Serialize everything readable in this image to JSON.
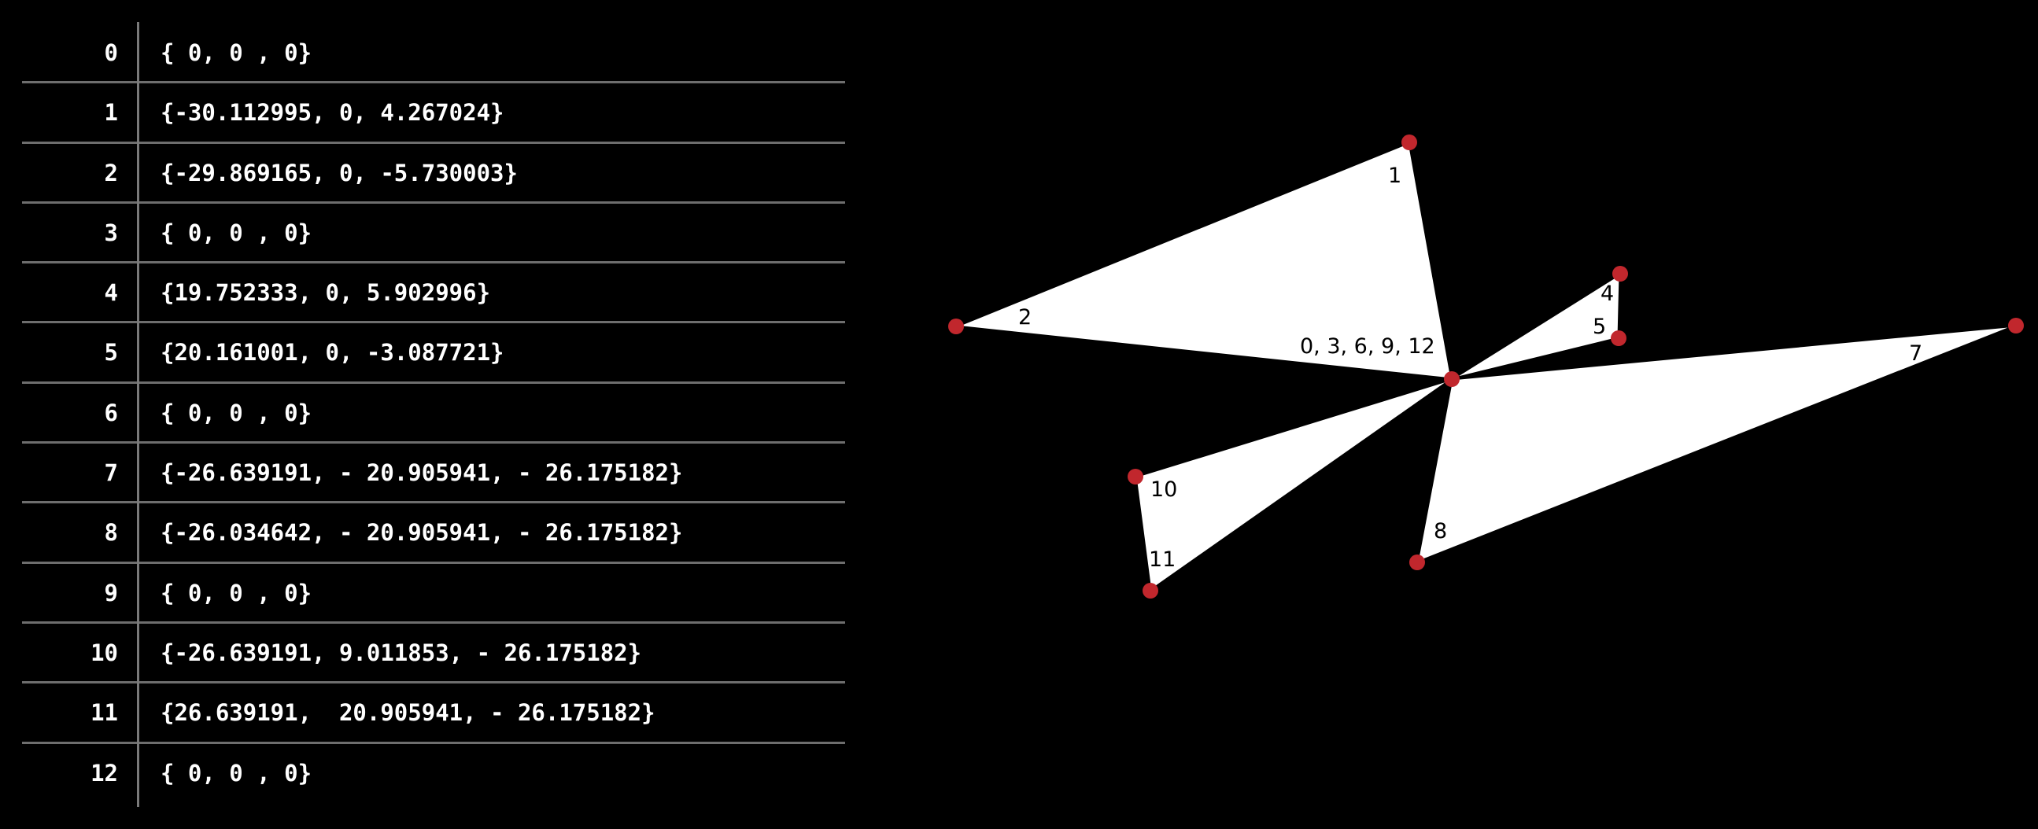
{
  "table": {
    "rows": [
      {
        "index": "0",
        "value": "{ 0, 0 , 0}"
      },
      {
        "index": "1",
        "value": "{-30.112995, 0, 4.267024}"
      },
      {
        "index": "2",
        "value": "{-29.869165, 0, -5.730003}"
      },
      {
        "index": "3",
        "value": "{ 0, 0 , 0}"
      },
      {
        "index": "4",
        "value": "{19.752333, 0, 5.902996}"
      },
      {
        "index": "5",
        "value": "{20.161001, 0, -3.087721}"
      },
      {
        "index": "6",
        "value": "{ 0, 0 , 0}"
      },
      {
        "index": "7",
        "value": "{-26.639191, - 20.905941, - 26.175182}"
      },
      {
        "index": "8",
        "value": "{-26.034642, - 20.905941, - 26.175182}"
      },
      {
        "index": "9",
        "value": "{ 0, 0 , 0}"
      },
      {
        "index": "10",
        "value": "{-26.639191, 9.011853, - 26.175182}"
      },
      {
        "index": "11",
        "value": "{26.639191,  20.905941, - 26.175182}"
      },
      {
        "index": "12",
        "value": "{ 0, 0 , 0}"
      }
    ]
  },
  "diagram": {
    "center_label": "0, 3, 6, 9, 12",
    "vertex_labels": {
      "v1": "1",
      "v2": "2",
      "v4": "4",
      "v5": "5",
      "v7": "7",
      "v8": "8",
      "v10": "10",
      "v11": "11"
    },
    "colors": {
      "background": "#000000",
      "triangle_fill": "#ffffff",
      "vertex_dot": "#c1272d",
      "grid_line": "#6e6e6e"
    }
  }
}
